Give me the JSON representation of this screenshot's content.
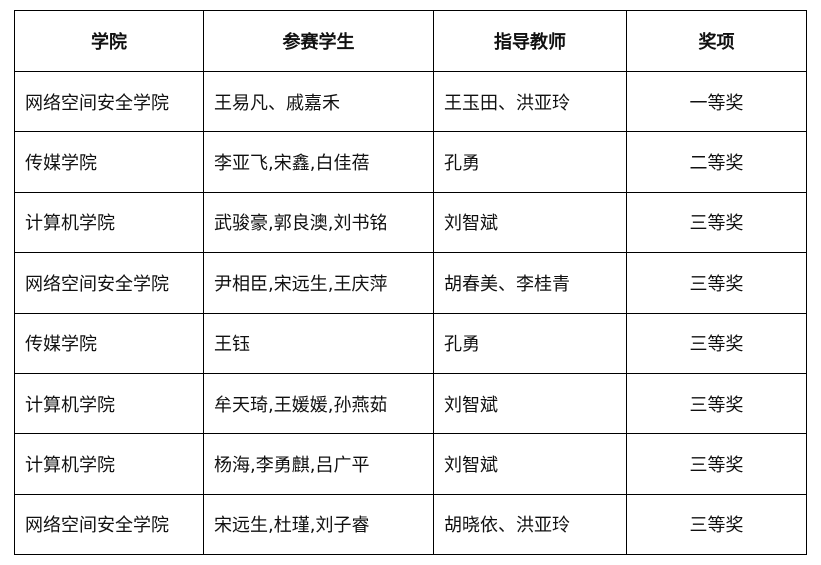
{
  "headers": [
    "学院",
    "参赛学生",
    "指导教师",
    "奖项"
  ],
  "rows": [
    [
      "网络空间安全学院",
      "王易凡、戚嘉禾",
      "王玉田、洪亚玲",
      "一等奖"
    ],
    [
      "传媒学院",
      "李亚飞,宋鑫,白佳蓓",
      "孔勇",
      "二等奖"
    ],
    [
      "计算机学院",
      "武骏豪,郭良澳,刘书铭",
      "刘智斌",
      "三等奖"
    ],
    [
      "网络空间安全学院",
      "尹相臣,宋远生,王庆萍",
      "胡春美、李桂青",
      "三等奖"
    ],
    [
      "传媒学院",
      "王钰",
      "孔勇",
      "三等奖"
    ],
    [
      "计算机学院",
      "牟天琦,王媛媛,孙燕茹",
      "刘智斌",
      "三等奖"
    ],
    [
      "计算机学院",
      "杨海,李勇麒,吕广平",
      "刘智斌",
      "三等奖"
    ],
    [
      "网络空间安全学院",
      "宋远生,杜瑾,刘子睿",
      "胡晓依、洪亚玲",
      "三等奖"
    ]
  ]
}
